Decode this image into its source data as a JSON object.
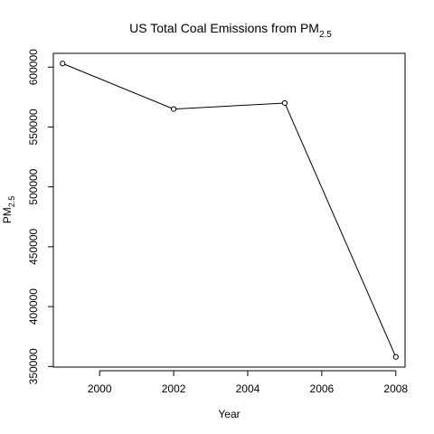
{
  "chart_data": {
    "type": "line",
    "title": "US Total Coal Emissions from PM",
    "title_subscript": "2.5",
    "xlabel": "Year",
    "ylabel": "PM",
    "ylabel_subscript": "2.5",
    "x": [
      1999,
      2002,
      2005,
      2008
    ],
    "series": [
      {
        "values": [
          603000,
          565000,
          570000,
          358000
        ]
      }
    ],
    "xlim": [
      1998.75,
      2008.25
    ],
    "ylim": [
      349500,
      611500
    ],
    "xticks": [
      2000,
      2002,
      2004,
      2006,
      2008
    ],
    "xtick_labels": [
      "2000",
      "2002",
      "2004",
      "2006",
      "2008"
    ],
    "yticks": [
      350000,
      400000,
      450000,
      500000,
      550000,
      600000
    ],
    "ytick_labels": [
      "350000",
      "400000",
      "450000",
      "500000",
      "550000",
      "600000"
    ],
    "markers": "open-circle",
    "grid": false,
    "legend": "none",
    "colors": {
      "line": "#000000",
      "axis": "#000000",
      "background": "#ffffff"
    }
  }
}
